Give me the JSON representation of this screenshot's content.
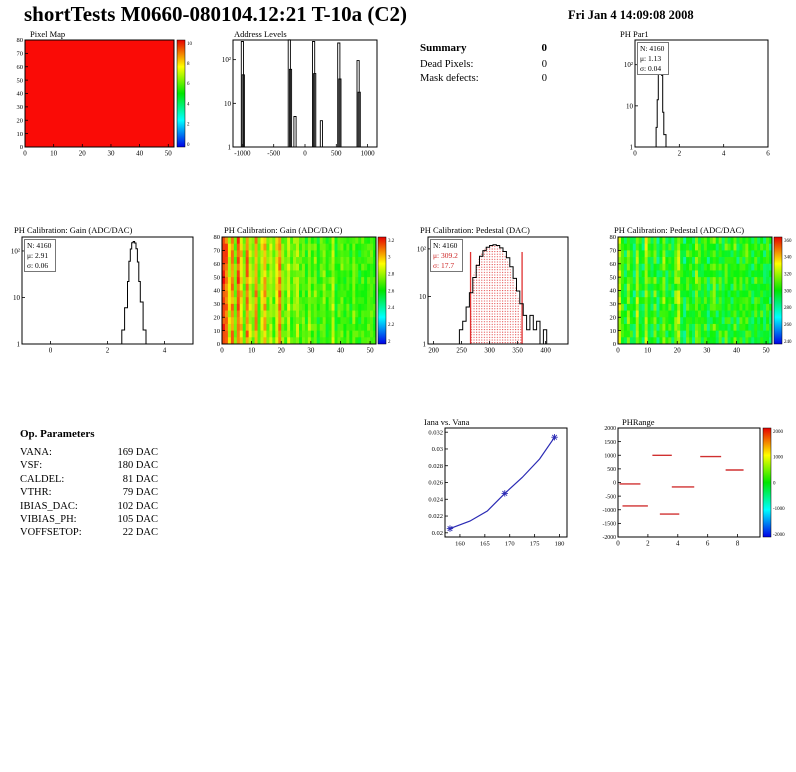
{
  "header": {
    "title": "shortTests M0660-080104.12:21 T-10a (C2)",
    "date": "Fri Jan 4 14:09:08 2008"
  },
  "summary": {
    "heading": "Summary",
    "heading_value": "0",
    "rows": [
      {
        "label": "Dead Pixels:",
        "value": "0"
      },
      {
        "label": "Mask defects:",
        "value": "0"
      }
    ]
  },
  "op_parameters": {
    "heading": "Op. Parameters",
    "rows": [
      {
        "label": "VANA:",
        "value": "169 DAC"
      },
      {
        "label": "VSF:",
        "value": "180 DAC"
      },
      {
        "label": "CALDEL:",
        "value": "81 DAC"
      },
      {
        "label": "VTHR:",
        "value": "79 DAC"
      },
      {
        "label": "IBIAS_DAC:",
        "value": "102 DAC"
      },
      {
        "label": "VIBIAS_PH:",
        "value": "105 DAC"
      },
      {
        "label": "VOFFSETOP:",
        "value": "22 DAC"
      }
    ]
  },
  "chart_data": [
    {
      "id": "pixel-map",
      "type": "heatmap",
      "title": "Pixel Map",
      "xticks": [
        "0",
        "10",
        "20",
        "30",
        "40",
        "50"
      ],
      "xlim": [
        0,
        52
      ],
      "yticks": [
        "0",
        "10",
        "20",
        "30",
        "40",
        "50",
        "60",
        "70",
        "80"
      ],
      "ylim": [
        0,
        80
      ],
      "fill_color": "#fa0b06",
      "colorbar_labels": [
        "10",
        "8",
        "6",
        "4",
        "2",
        "0"
      ]
    },
    {
      "id": "address-levels",
      "type": "histogram-log",
      "title": "Address Levels",
      "xticks": [
        "-1000",
        "-500",
        "0",
        "500",
        "1000"
      ],
      "xlim": [
        -1150,
        1150
      ],
      "ylog": {
        "labels": [
          "10²",
          "10",
          "1"
        ],
        "exps": [
          2,
          1,
          0
        ],
        "max_exp": 2.45
      },
      "spikes": [
        [
          -1000,
          260
        ],
        [
          -985,
          45
        ],
        [
          -250,
          285
        ],
        [
          -232,
          60
        ],
        [
          -160,
          5
        ],
        [
          138,
          260
        ],
        [
          155,
          48
        ],
        [
          262,
          4
        ],
        [
          540,
          240
        ],
        [
          558,
          36
        ],
        [
          848,
          95
        ],
        [
          866,
          18
        ]
      ]
    },
    {
      "id": "ph-par1",
      "type": "histogram-log",
      "title": "PH Par1",
      "stats": [
        "N: 4160",
        "μ: 1.13",
        "σ: 0.04"
      ],
      "xticks": [
        "0",
        "2",
        "4",
        "6"
      ],
      "xlim": [
        0,
        6
      ],
      "ylog": {
        "labels": [
          "10²",
          "10",
          "1"
        ],
        "exps": [
          2,
          1,
          0
        ],
        "max_exp": 2.6
      },
      "points": [
        [
          0.85,
          1
        ],
        [
          0.95,
          3
        ],
        [
          1.0,
          14
        ],
        [
          1.05,
          130
        ],
        [
          1.1,
          330
        ],
        [
          1.15,
          290
        ],
        [
          1.2,
          55
        ],
        [
          1.25,
          7
        ],
        [
          1.3,
          2
        ],
        [
          1.4,
          1
        ]
      ]
    },
    {
      "id": "gain-hist",
      "type": "histogram-log",
      "title": "PH Calibration: Gain (ADC/DAC)",
      "stats": [
        "N: 4160",
        "μ: 2.91",
        "σ: 0.06"
      ],
      "xticks": [
        "0",
        "2",
        "4"
      ],
      "xlim": [
        -1,
        5
      ],
      "ylog": {
        "labels": [
          "10²",
          "10",
          "1"
        ],
        "exps": [
          2,
          1,
          0
        ],
        "max_exp": 2.3
      },
      "points": [
        [
          2.3,
          1
        ],
        [
          2.5,
          2
        ],
        [
          2.6,
          6
        ],
        [
          2.7,
          22
        ],
        [
          2.75,
          60
        ],
        [
          2.8,
          110
        ],
        [
          2.85,
          150
        ],
        [
          2.9,
          160
        ],
        [
          2.95,
          148
        ],
        [
          3.0,
          112
        ],
        [
          3.05,
          58
        ],
        [
          3.1,
          22
        ],
        [
          3.15,
          8
        ],
        [
          3.25,
          2
        ],
        [
          3.35,
          1
        ]
      ]
    },
    {
      "id": "gain-map",
      "type": "heatmap",
      "title": "PH Calibration: Gain (ADC/DAC)",
      "xticks": [
        "0",
        "10",
        "20",
        "30",
        "40",
        "50"
      ],
      "xlim": [
        0,
        52
      ],
      "yticks": [
        "0",
        "10",
        "20",
        "30",
        "40",
        "50",
        "60",
        "70",
        "80"
      ],
      "ylim": [
        0,
        80
      ],
      "cols": [
        0.96,
        0.9,
        0.72,
        0.86,
        0.6,
        0.92,
        0.78,
        0.6,
        0.88,
        0.7,
        0.62,
        0.85,
        0.58,
        0.72,
        0.82,
        0.6,
        0.68,
        0.58,
        0.74,
        0.88,
        0.62,
        0.58,
        0.7,
        0.55,
        0.62,
        0.66,
        0.55,
        0.6,
        0.52,
        0.66,
        0.56,
        0.62,
        0.5,
        0.56,
        0.62,
        0.52,
        0.56,
        0.68,
        0.5,
        0.56,
        0.6,
        0.52,
        0.56,
        0.5,
        0.62,
        0.56,
        0.5,
        0.56,
        0.52,
        0.56,
        0.6,
        0.52
      ],
      "noise": 0.06,
      "colorbar_labels": [
        "3.2",
        "3",
        "2.8",
        "2.6",
        "2.4",
        "2.2",
        "2"
      ]
    },
    {
      "id": "pedestal-hist",
      "type": "histogram-log",
      "title": "PH Calibration: Pedestal (DAC)",
      "stats": [
        "N: 4160",
        "μ: 309.2",
        "σ: 17.7"
      ],
      "stats_red": true,
      "xticks": [
        "200",
        "250",
        "300",
        "350",
        "400"
      ],
      "xlim": [
        190,
        440
      ],
      "ylog": {
        "labels": [
          "10²",
          "10",
          "1"
        ],
        "exps": [
          2,
          1,
          0
        ],
        "max_exp": 2.25
      },
      "points": [
        [
          238,
          1
        ],
        [
          246,
          2
        ],
        [
          252,
          3
        ],
        [
          258,
          6
        ],
        [
          264,
          12
        ],
        [
          270,
          25
        ],
        [
          276,
          45
        ],
        [
          282,
          70
        ],
        [
          288,
          92
        ],
        [
          294,
          108
        ],
        [
          300,
          118
        ],
        [
          306,
          122
        ],
        [
          312,
          118
        ],
        [
          318,
          105
        ],
        [
          324,
          88
        ],
        [
          330,
          65
        ],
        [
          336,
          42
        ],
        [
          342,
          24
        ],
        [
          348,
          13
        ],
        [
          354,
          7
        ],
        [
          360,
          4
        ],
        [
          366,
          2
        ],
        [
          372,
          4
        ],
        [
          378,
          2
        ],
        [
          384,
          3
        ],
        [
          390,
          1
        ],
        [
          396,
          2
        ],
        [
          402,
          1
        ]
      ],
      "fill_between": [
        266,
        358
      ],
      "red_lines": [
        266,
        358
      ]
    },
    {
      "id": "pedestal-map",
      "type": "heatmap",
      "title": "PH Calibration: Pedestal (ADC/DAC)",
      "xticks": [
        "0",
        "10",
        "20",
        "30",
        "40",
        "50"
      ],
      "xlim": [
        0,
        52
      ],
      "yticks": [
        "0",
        "10",
        "20",
        "30",
        "40",
        "50",
        "60",
        "70",
        "80"
      ],
      "ylim": [
        0,
        80
      ],
      "cols": [
        0.7,
        0.55,
        0.45,
        0.6,
        0.5,
        0.42,
        0.65,
        0.5,
        0.45,
        0.68,
        0.52,
        0.46,
        0.58,
        0.42,
        0.5,
        0.62,
        0.46,
        0.52,
        0.44,
        0.58,
        0.65,
        0.48,
        0.42,
        0.55,
        0.5,
        0.44,
        0.6,
        0.52,
        0.46,
        0.55,
        0.42,
        0.5,
        0.58,
        0.46,
        0.52,
        0.44,
        0.56,
        0.5,
        0.46,
        0.58,
        0.44,
        0.52,
        0.48,
        0.56,
        0.5,
        0.44,
        0.54,
        0.48,
        0.52,
        0.46,
        0.5,
        0.44
      ],
      "noise": 0.09,
      "colorbar_labels": [
        "360",
        "340",
        "320",
        "300",
        "280",
        "260",
        "240"
      ]
    },
    {
      "id": "iana-vs-vana",
      "type": "line",
      "title": "Iana vs. Vana",
      "xticks": [
        "160",
        "165",
        "170",
        "175",
        "180"
      ],
      "xlim": [
        157,
        181.5
      ],
      "yticks": [
        "0.032",
        "0.03",
        "0.028",
        "0.026",
        "0.024",
        "0.022",
        "0.02"
      ],
      "ylim": [
        0.0195,
        0.0325
      ],
      "points": [
        [
          158,
          0.0205
        ],
        [
          162,
          0.0214
        ],
        [
          165.5,
          0.0226
        ],
        [
          169,
          0.0247
        ],
        [
          172.5,
          0.0266
        ],
        [
          176,
          0.0288
        ],
        [
          179,
          0.0314
        ]
      ],
      "markers": [
        [
          158,
          0.0205
        ],
        [
          169,
          0.0247
        ],
        [
          179,
          0.0314
        ]
      ],
      "color": "#2a2ab4"
    },
    {
      "id": "ph-range",
      "type": "dash-map",
      "title": "PHRange",
      "xticks": [
        "0",
        "2",
        "4",
        "6",
        "8"
      ],
      "xlim": [
        0,
        9.5
      ],
      "yticks": [
        "2000",
        "1500",
        "1000",
        "500",
        "0",
        "-500",
        "-1000",
        "-1500",
        "-2000"
      ],
      "ylim": [
        -2000,
        2000
      ],
      "dashes": [
        {
          "x1": 2.3,
          "x2": 3.6,
          "y": 1000
        },
        {
          "x1": 5.5,
          "x2": 6.9,
          "y": 950
        },
        {
          "x1": 7.2,
          "x2": 8.4,
          "y": 460
        },
        {
          "x1": 0.1,
          "x2": 1.5,
          "y": -50
        },
        {
          "x1": 3.6,
          "x2": 5.1,
          "y": -160
        },
        {
          "x1": 0.3,
          "x2": 2.0,
          "y": -860
        },
        {
          "x1": 2.8,
          "x2": 4.1,
          "y": -1160
        }
      ],
      "color": "#d03030",
      "colorbar_labels": [
        "2000",
        "1000",
        "0",
        "-1000",
        "-2000"
      ]
    }
  ]
}
